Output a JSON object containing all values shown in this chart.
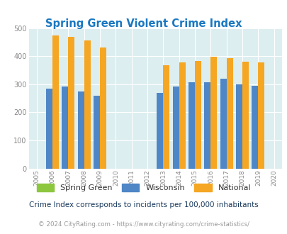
{
  "title": "Spring Green Violent Crime Index",
  "years": [
    2005,
    2006,
    2007,
    2008,
    2009,
    2010,
    2011,
    2012,
    2013,
    2014,
    2015,
    2016,
    2017,
    2018,
    2019,
    2020
  ],
  "spring_green": [
    0,
    0,
    0,
    0,
    0,
    0,
    0,
    0,
    0,
    0,
    0,
    0,
    0,
    0,
    0,
    0
  ],
  "wisconsin": [
    0,
    285,
    292,
    275,
    260,
    0,
    0,
    0,
    270,
    293,
    307,
    307,
    320,
    300,
    294,
    0
  ],
  "national": [
    0,
    474,
    468,
    455,
    432,
    0,
    0,
    0,
    368,
    379,
    384,
    399,
    394,
    381,
    379,
    0
  ],
  "bar_width": 0.4,
  "ylim": [
    0,
    500
  ],
  "yticks": [
    0,
    100,
    200,
    300,
    400,
    500
  ],
  "color_spring_green": "#8dc63f",
  "color_wisconsin": "#4f86c6",
  "color_national": "#f5a623",
  "bg_color": "#ddeef0",
  "title_color": "#1a78c2",
  "subtitle": "Crime Index corresponds to incidents per 100,000 inhabitants",
  "footer_left": "© 2024 CityRating.com - ",
  "footer_url": "https://www.cityrating.com/crime-statistics/",
  "subtitle_color": "#1a3a5c",
  "footer_color": "#999999",
  "footer_url_color": "#4488cc"
}
